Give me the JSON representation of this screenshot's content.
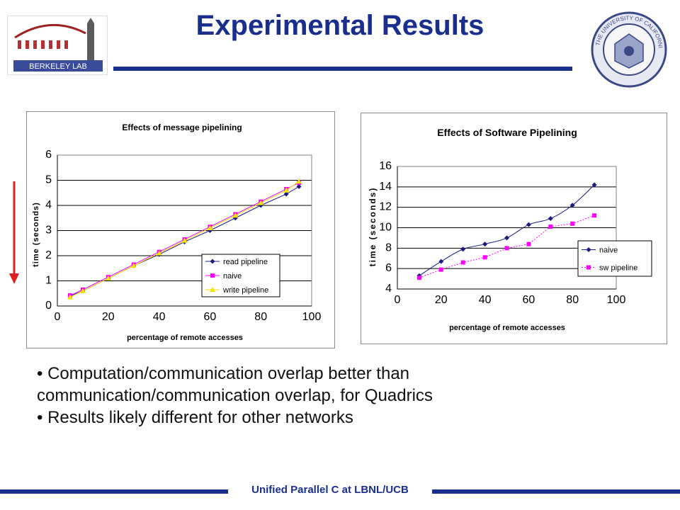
{
  "slide": {
    "title": "Experimental Results",
    "footer": "Unified Parallel C at LBNL/UCB",
    "accent_color": "#1a2f8c",
    "bullets": [
      "• Computation/communication overlap better than",
      "communication/communication overlap, for Quadrics",
      "• Results likely different for other networks"
    ]
  },
  "logos": {
    "left": {
      "name": "berkeley-lab-logo",
      "text": "BERKELEY LAB"
    },
    "right": {
      "name": "university-of-california-seal",
      "text": "THE UNIVERSITY OF CALIFORNIA · 1868"
    }
  },
  "chart_data": [
    {
      "type": "line",
      "title": "Effects of message pipelining",
      "xlabel": "percentage of remote accesses",
      "ylabel": "time (seconds)",
      "xlim": [
        0,
        100
      ],
      "ylim": [
        0,
        6
      ],
      "xticks": [
        0,
        20,
        40,
        60,
        80,
        100
      ],
      "yticks": [
        0,
        1,
        2,
        3,
        4,
        5,
        6
      ],
      "grid": true,
      "legend_position": "bottom-right",
      "series": [
        {
          "name": "read pipeline",
          "color": "#1a1a80",
          "marker": "diamond",
          "x": [
            5,
            10,
            20,
            30,
            40,
            50,
            60,
            70,
            80,
            90,
            95
          ],
          "y": [
            0.4,
            0.6,
            1.1,
            1.6,
            2.05,
            2.55,
            3.0,
            3.5,
            4.0,
            4.45,
            4.75
          ]
        },
        {
          "name": "naive",
          "color": "#ff00ff",
          "marker": "square",
          "x": [
            5,
            10,
            20,
            30,
            40,
            50,
            60,
            70,
            80,
            90,
            95
          ],
          "y": [
            0.42,
            0.65,
            1.15,
            1.65,
            2.15,
            2.65,
            3.15,
            3.65,
            4.15,
            4.65,
            4.9
          ]
        },
        {
          "name": "write pipeline",
          "color": "#f2e600",
          "marker": "triangle",
          "x": [
            5,
            10,
            20,
            30,
            40,
            50,
            60,
            70,
            80,
            90,
            95
          ],
          "y": [
            0.35,
            0.6,
            1.1,
            1.6,
            2.1,
            2.6,
            3.1,
            3.6,
            4.1,
            4.6,
            4.95
          ]
        }
      ]
    },
    {
      "type": "line",
      "title": "Effects of Software Pipelining",
      "xlabel": "percentage of remote accesses",
      "ylabel": "time (seconds)",
      "xlim": [
        0,
        100
      ],
      "ylim": [
        4,
        16
      ],
      "xticks": [
        0,
        20,
        40,
        60,
        80,
        100
      ],
      "yticks": [
        4,
        6,
        8,
        10,
        12,
        14,
        16
      ],
      "grid": true,
      "legend_position": "bottom-right",
      "series": [
        {
          "name": "naive",
          "color": "#1a1a80",
          "marker": "diamond",
          "line": "smooth",
          "x": [
            10,
            20,
            30,
            40,
            50,
            60,
            70,
            80,
            90
          ],
          "y": [
            5.3,
            6.7,
            7.9,
            8.4,
            9.0,
            10.3,
            10.9,
            12.2,
            14.2
          ]
        },
        {
          "name": "sw pipeline",
          "color": "#ff00ff",
          "marker": "square",
          "line": "dotted",
          "x": [
            10,
            20,
            30,
            40,
            50,
            60,
            70,
            80,
            90
          ],
          "y": [
            5.1,
            5.9,
            6.6,
            7.1,
            8.0,
            8.4,
            10.1,
            10.4,
            11.2
          ]
        }
      ]
    }
  ]
}
